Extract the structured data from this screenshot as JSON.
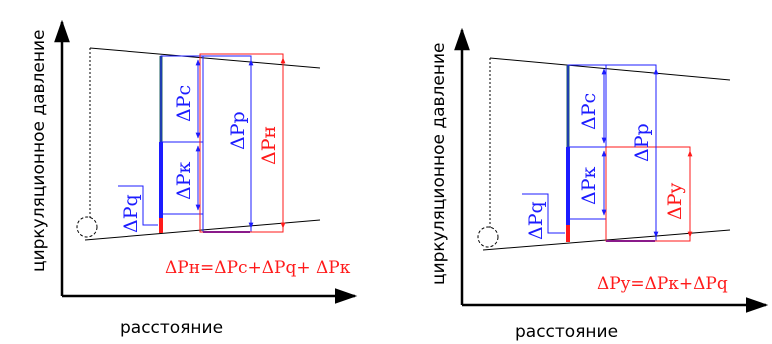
{
  "left_panel": {
    "y_axis_label": "циркуляционное давление",
    "x_axis_label": "расстояние",
    "labels": {
      "dpc": "ΔPc",
      "dpk": "ΔPк",
      "dpq": "ΔPq",
      "dpp": "ΔPp",
      "dph": "ΔPн"
    },
    "formula": "ΔPн=ΔPc+ΔPq+ ΔPк"
  },
  "right_panel": {
    "y_axis_label": "циркуляционное давление",
    "x_axis_label": "расстояние",
    "labels": {
      "dpc": "ΔPc",
      "dpk": "ΔPк",
      "dpq": "ΔPq",
      "dpp": "ΔPp",
      "dpy": "ΔPy"
    },
    "formula": "ΔPy=ΔPк+ΔPq"
  },
  "colors": {
    "blue": "#1c1cff",
    "red": "#ff1a1a",
    "teal": "#1f5f5f",
    "purple": "#8a1a8a",
    "black": "#000000"
  }
}
